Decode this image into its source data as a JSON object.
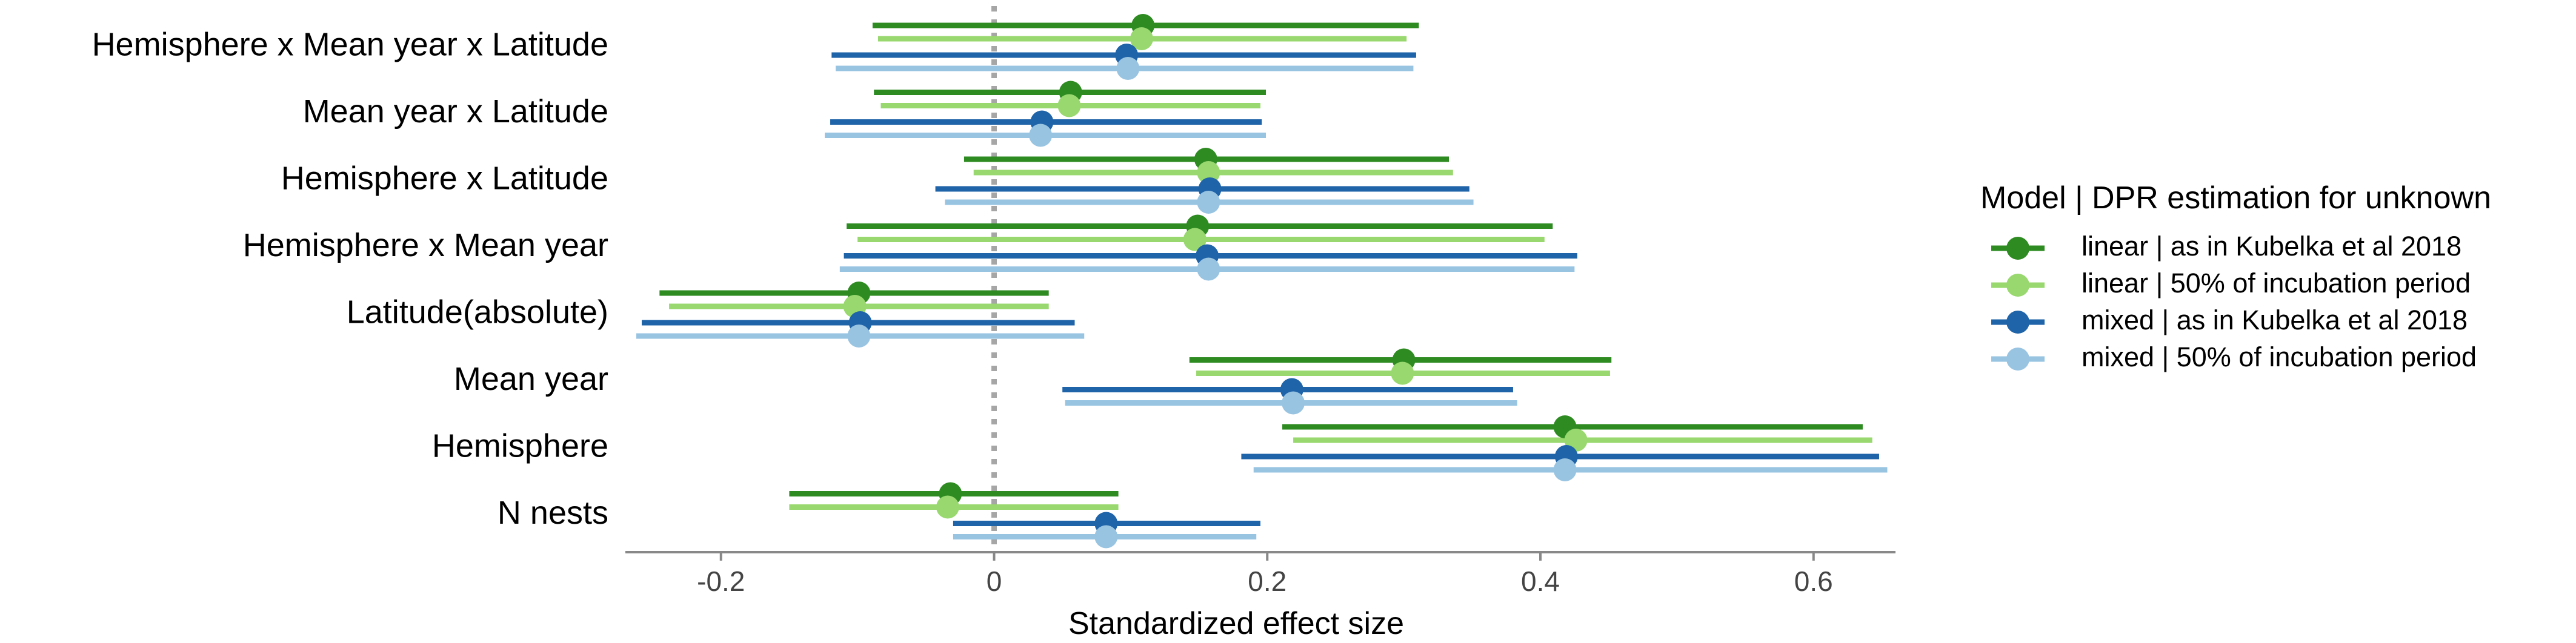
{
  "chart_data": {
    "type": "forest",
    "title": "",
    "xlabel": "Standardized effect size",
    "ylabel": "",
    "xlim": [
      -0.27,
      0.66
    ],
    "xticks": [
      -0.2,
      0,
      0.2,
      0.4,
      0.6
    ],
    "xtick_labels": [
      "-0.2",
      "0",
      "0.2",
      "0.4",
      "0.6"
    ],
    "reference_line": 0,
    "grid": false,
    "legend": {
      "title": "Model | DPR estimation for unknown",
      "placement": "right"
    },
    "terms": [
      "Hemisphere x Mean year x Latitude",
      "Mean year x Latitude",
      "Hemisphere x Latitude",
      "Hemisphere x Mean year",
      "Latitude(absolute)",
      "Mean year",
      "Hemisphere",
      "N nests"
    ],
    "series": [
      {
        "name": "linear | as in Kubelka et al 2018",
        "color": "#2e8b22",
        "estimate": [
          0.109,
          0.056,
          0.155,
          0.149,
          -0.099,
          0.3,
          0.418,
          -0.032
        ],
        "ci_low": [
          -0.089,
          -0.088,
          -0.022,
          -0.108,
          -0.245,
          0.143,
          0.211,
          -0.15
        ],
        "ci_high": [
          0.311,
          0.199,
          0.333,
          0.409,
          0.04,
          0.452,
          0.636,
          0.091
        ]
      },
      {
        "name": "linear | 50% of incubation period",
        "color": "#98d86e",
        "estimate": [
          0.108,
          0.055,
          0.157,
          0.147,
          -0.102,
          0.299,
          0.426,
          -0.034
        ],
        "ci_low": [
          -0.085,
          -0.083,
          -0.015,
          -0.1,
          -0.238,
          0.148,
          0.219,
          -0.15
        ],
        "ci_high": [
          0.302,
          0.195,
          0.336,
          0.403,
          0.04,
          0.451,
          0.643,
          0.091
        ]
      },
      {
        "name": "mixed | as in Kubelka et al 2018",
        "color": "#1f63a8",
        "estimate": [
          0.097,
          0.035,
          0.158,
          0.156,
          -0.098,
          0.218,
          0.419,
          0.082
        ],
        "ci_low": [
          -0.119,
          -0.12,
          -0.043,
          -0.11,
          -0.258,
          0.05,
          0.181,
          -0.03
        ],
        "ci_high": [
          0.309,
          0.196,
          0.348,
          0.427,
          0.059,
          0.38,
          0.648,
          0.195
        ]
      },
      {
        "name": "mixed | 50% of incubation period",
        "color": "#98c4e2",
        "estimate": [
          0.098,
          0.034,
          0.157,
          0.157,
          -0.099,
          0.219,
          0.418,
          0.082
        ],
        "ci_low": [
          -0.116,
          -0.124,
          -0.036,
          -0.113,
          -0.262,
          0.052,
          0.19,
          -0.03
        ],
        "ci_high": [
          0.307,
          0.199,
          0.351,
          0.425,
          0.066,
          0.383,
          0.654,
          0.192
        ]
      }
    ]
  }
}
